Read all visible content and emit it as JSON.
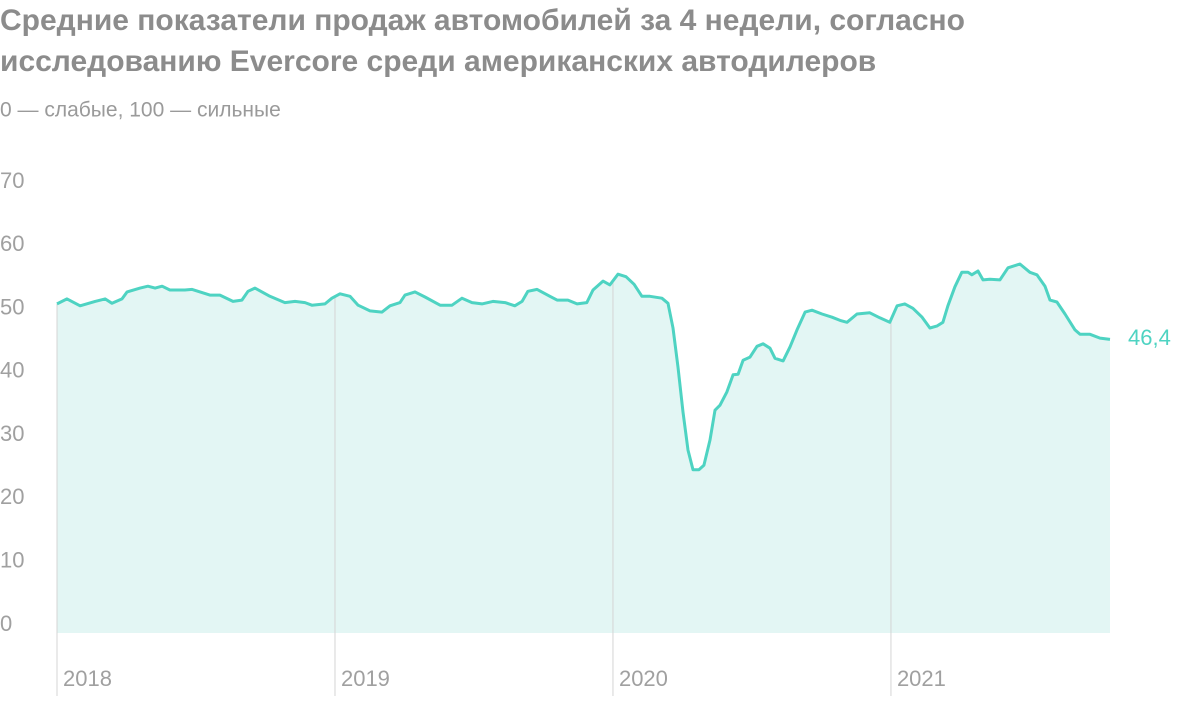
{
  "chart_data": {
    "type": "area",
    "title": "Средние показатели продаж автомобилей за 4 недели, согласно исследованию Evercore среди американских автодилеров",
    "subtitle": "0 — слабые, 100 — сильные",
    "x": [
      2018.0,
      2018.036,
      2018.083,
      2018.137,
      2018.173,
      2018.198,
      2018.234,
      2018.252,
      2018.299,
      2018.327,
      2018.353,
      2018.378,
      2018.406,
      2018.46,
      2018.486,
      2018.55,
      2018.586,
      2018.633,
      2018.665,
      2018.687,
      2018.712,
      2018.766,
      2018.82,
      2018.856,
      2018.892,
      2018.917,
      2018.964,
      2018.989,
      2019.018,
      2019.054,
      2019.083,
      2019.126,
      2019.169,
      2019.198,
      2019.234,
      2019.252,
      2019.288,
      2019.324,
      2019.378,
      2019.421,
      2019.457,
      2019.493,
      2019.529,
      2019.568,
      2019.612,
      2019.647,
      2019.673,
      2019.694,
      2019.727,
      2019.773,
      2019.799,
      2019.838,
      2019.871,
      2019.906,
      2019.928,
      2019.964,
      2019.989,
      2020.018,
      2020.047,
      2020.076,
      2020.104,
      2020.133,
      2020.176,
      2020.198,
      2020.216,
      2020.234,
      2020.252,
      2020.27,
      2020.288,
      2020.309,
      2020.327,
      2020.349,
      2020.367,
      2020.385,
      2020.41,
      2020.432,
      2020.45,
      2020.468,
      2020.493,
      2020.518,
      2020.54,
      2020.565,
      2020.583,
      2020.612,
      2020.637,
      2020.662,
      2020.691,
      2020.716,
      2020.752,
      2020.788,
      2020.817,
      2020.842,
      2020.878,
      2020.924,
      2020.96,
      2020.996,
      2021.022,
      2021.05,
      2021.079,
      2021.112,
      2021.14,
      2021.165,
      2021.187,
      2021.205,
      2021.23,
      2021.255,
      2021.277,
      2021.291,
      2021.313,
      2021.331,
      2021.356,
      2021.392,
      2021.421,
      2021.464,
      2021.5,
      2021.525,
      2021.554,
      2021.572,
      2021.597,
      2021.626,
      2021.662,
      2021.68,
      2021.716,
      2021.752,
      2021.788
    ],
    "series": [
      {
        "color": "#4ed3c2",
        "values": [
          52.0,
          52.8,
          51.7,
          52.4,
          52.8,
          52.1,
          52.8,
          53.9,
          54.5,
          54.8,
          54.5,
          54.8,
          54.2,
          54.2,
          54.3,
          53.4,
          53.4,
          52.4,
          52.6,
          54.0,
          54.5,
          53.2,
          52.2,
          52.4,
          52.2,
          51.8,
          52.0,
          52.9,
          53.6,
          53.2,
          51.8,
          50.9,
          50.7,
          51.7,
          52.2,
          53.4,
          53.9,
          53.1,
          51.8,
          51.8,
          52.9,
          52.2,
          52.0,
          52.4,
          52.2,
          51.7,
          52.4,
          54.0,
          54.3,
          53.2,
          52.6,
          52.6,
          52.0,
          52.2,
          54.2,
          55.6,
          55.0,
          56.7,
          56.3,
          55.1,
          53.2,
          53.2,
          52.9,
          52.1,
          48.2,
          42.0,
          34.9,
          28.9,
          25.8,
          25.8,
          26.5,
          30.5,
          35.2,
          36.0,
          38.1,
          40.8,
          40.9,
          43.1,
          43.6,
          45.3,
          45.7,
          45.0,
          43.4,
          43.0,
          45.2,
          47.9,
          50.7,
          51.0,
          50.4,
          49.9,
          49.4,
          49.1,
          50.4,
          50.6,
          49.8,
          49.1,
          51.7,
          52.0,
          51.3,
          49.9,
          48.2,
          48.5,
          49.1,
          51.7,
          54.7,
          57.0,
          57.0,
          56.6,
          57.2,
          55.8,
          55.9,
          55.8,
          57.7,
          58.3,
          57.0,
          56.6,
          54.8,
          52.6,
          52.3,
          50.4,
          47.9,
          47.2,
          47.2,
          46.6,
          46.4
        ],
        "last_value_label": "46,4"
      }
    ],
    "xlim": [
      2018,
      2021.788
    ],
    "xticks": [
      2018,
      2019,
      2020,
      2021
    ],
    "ylim": [
      0,
      70
    ],
    "yticks": [
      0,
      10,
      20,
      30,
      40,
      50,
      60,
      70
    ],
    "fill_color": "#e3f6f4"
  }
}
